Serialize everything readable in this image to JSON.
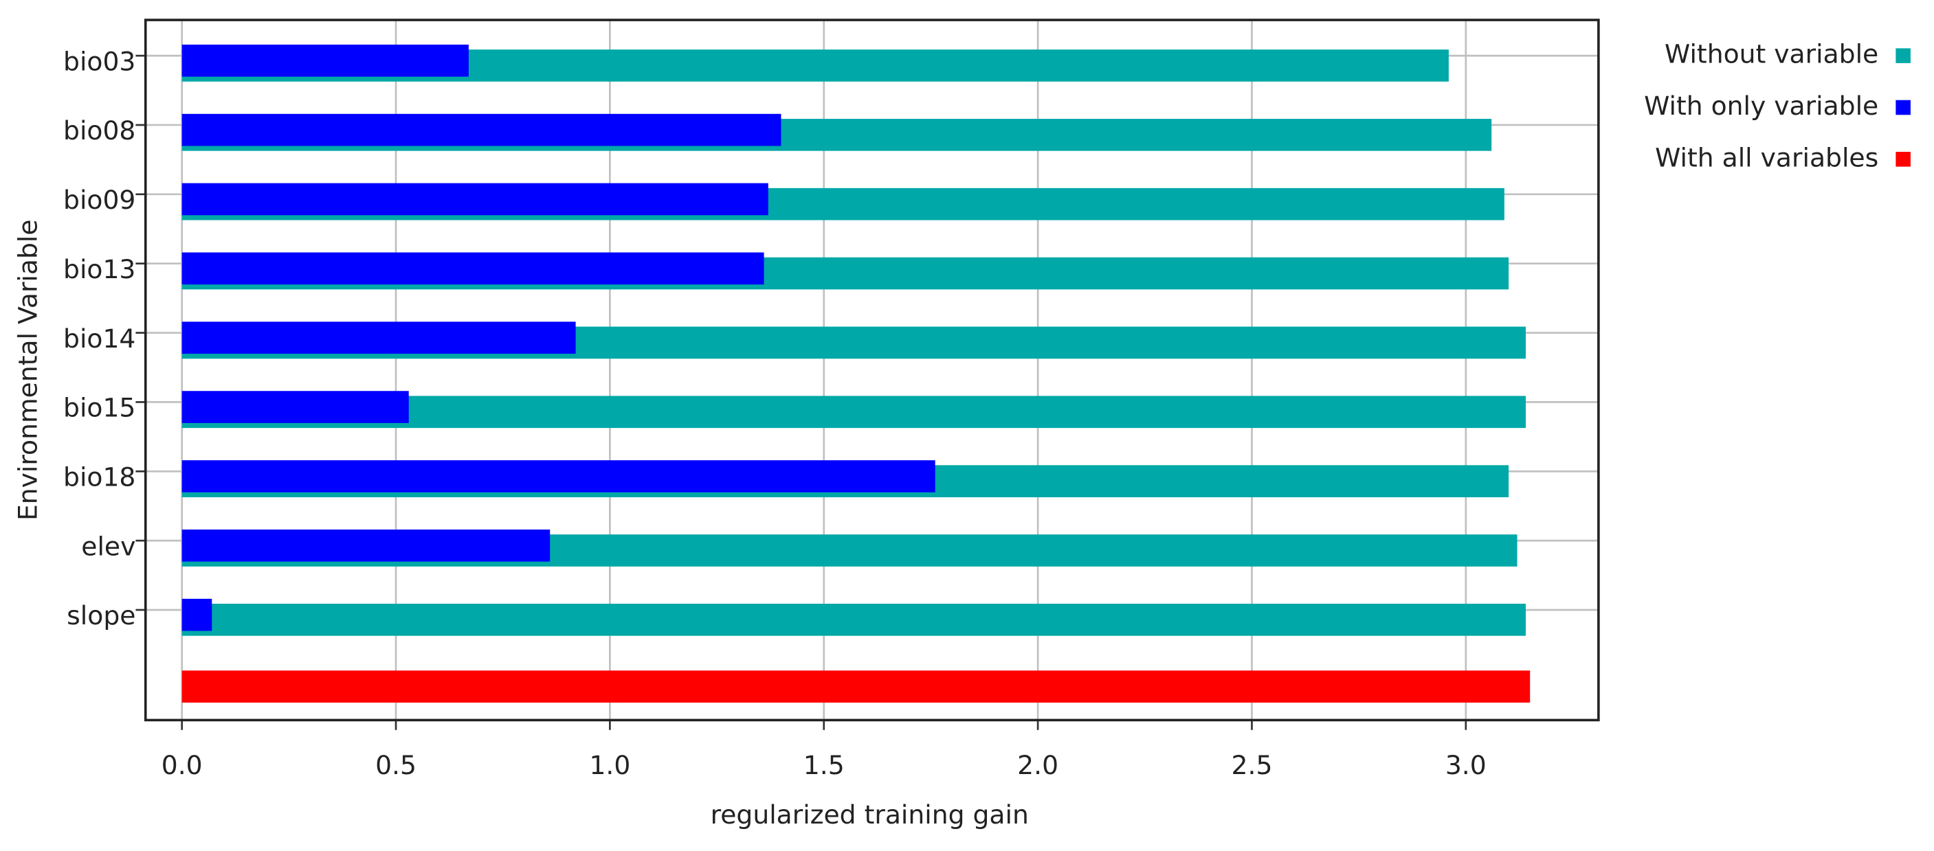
{
  "chart_data": {
    "type": "bar",
    "orientation": "horizontal",
    "x_label": "regularized training gain",
    "y_label": "Environmental Variable",
    "categories": [
      "bio03",
      "bio08",
      "bio09",
      "bio13",
      "bio14",
      "bio15",
      "bio18",
      "elev",
      "slope",
      null
    ],
    "series": [
      {
        "name": "Without variable",
        "color": "#00a8a8",
        "values": [
          2.96,
          3.06,
          3.09,
          3.1,
          3.14,
          3.14,
          3.1,
          3.12,
          3.14,
          null
        ]
      },
      {
        "name": "With only variable",
        "color": "#0000ff",
        "values": [
          0.67,
          1.4,
          1.37,
          1.36,
          0.92,
          0.53,
          1.76,
          0.86,
          0.07,
          null
        ]
      },
      {
        "name": "With all variables",
        "color": "#ff0000",
        "values": [
          null,
          null,
          null,
          null,
          null,
          null,
          null,
          null,
          null,
          3.15
        ]
      }
    ],
    "xlim": [
      -0.085,
      3.31
    ],
    "xticks": [
      {
        "value": 0,
        "label": "0.0"
      },
      0.5,
      {
        "value": 1,
        "label": "1.0"
      },
      1.5,
      {
        "value": 2,
        "label": "2.0"
      },
      2.5,
      {
        "value": 3,
        "label": "3.0"
      }
    ],
    "grid": true
  }
}
